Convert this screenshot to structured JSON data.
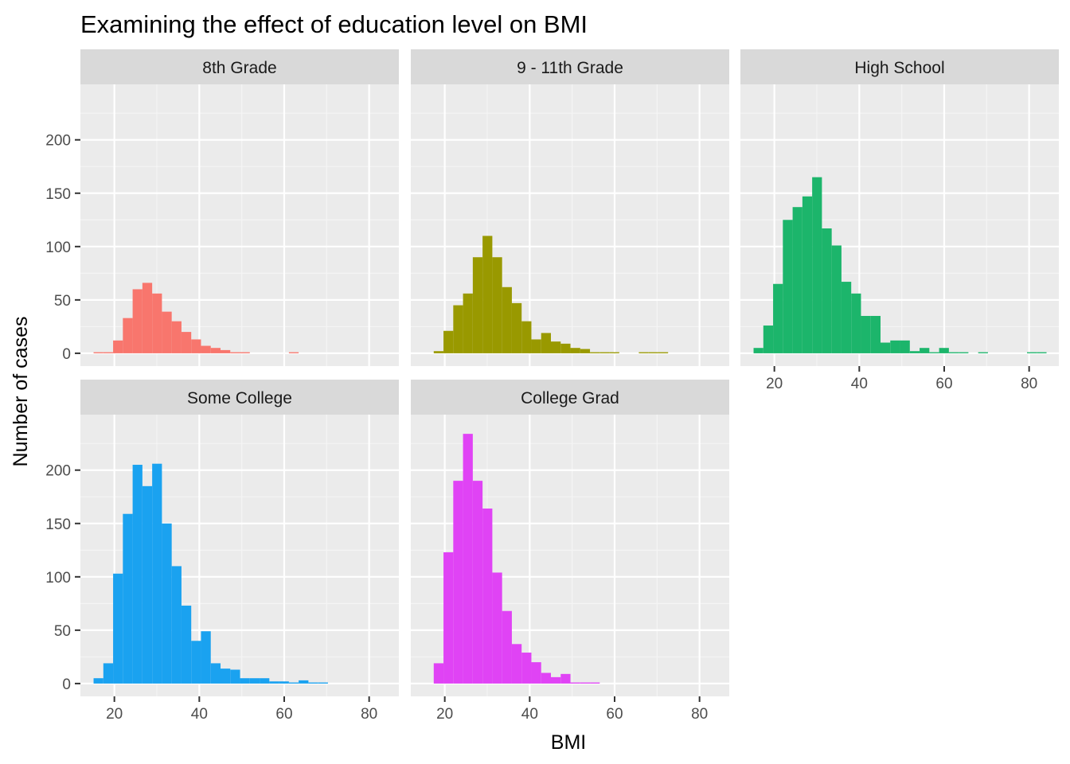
{
  "chart_data": {
    "type": "bar",
    "subtype": "faceted-histogram",
    "title": "Examining the effect of education level on BMI",
    "xlabel": "BMI",
    "ylabel": "Number of cases",
    "xlim": [
      12,
      87
    ],
    "ylim": [
      -12,
      252
    ],
    "x_ticks": [
      20,
      40,
      60,
      80
    ],
    "y_ticks": [
      0,
      50,
      100,
      150,
      200
    ],
    "grid": true,
    "bin_width": 2.3,
    "facets": [
      {
        "name": "8th Grade",
        "color": "#F8766D",
        "bins": [
          {
            "x0": 15.1,
            "count": 1
          },
          {
            "x0": 17.4,
            "count": 1
          },
          {
            "x0": 19.7,
            "count": 12
          },
          {
            "x0": 22.0,
            "count": 33
          },
          {
            "x0": 24.3,
            "count": 60
          },
          {
            "x0": 26.6,
            "count": 66
          },
          {
            "x0": 28.9,
            "count": 56
          },
          {
            "x0": 31.2,
            "count": 39
          },
          {
            "x0": 33.5,
            "count": 30
          },
          {
            "x0": 35.8,
            "count": 20
          },
          {
            "x0": 38.1,
            "count": 13
          },
          {
            "x0": 40.4,
            "count": 7
          },
          {
            "x0": 42.7,
            "count": 5
          },
          {
            "x0": 45.0,
            "count": 3
          },
          {
            "x0": 47.3,
            "count": 1
          },
          {
            "x0": 49.6,
            "count": 1
          },
          {
            "x0": 61.1,
            "count": 1
          }
        ]
      },
      {
        "name": "9 - 11th Grade",
        "color": "#999900",
        "bins": [
          {
            "x0": 17.4,
            "count": 2
          },
          {
            "x0": 19.7,
            "count": 21
          },
          {
            "x0": 22.0,
            "count": 45
          },
          {
            "x0": 24.3,
            "count": 56
          },
          {
            "x0": 26.6,
            "count": 90
          },
          {
            "x0": 28.9,
            "count": 110
          },
          {
            "x0": 31.2,
            "count": 90
          },
          {
            "x0": 33.5,
            "count": 62
          },
          {
            "x0": 35.8,
            "count": 47
          },
          {
            "x0": 38.1,
            "count": 30
          },
          {
            "x0": 40.4,
            "count": 13
          },
          {
            "x0": 42.7,
            "count": 19
          },
          {
            "x0": 45.0,
            "count": 11
          },
          {
            "x0": 47.3,
            "count": 9
          },
          {
            "x0": 49.6,
            "count": 5
          },
          {
            "x0": 51.9,
            "count": 4
          },
          {
            "x0": 54.2,
            "count": 1
          },
          {
            "x0": 56.5,
            "count": 1
          },
          {
            "x0": 58.8,
            "count": 1
          },
          {
            "x0": 65.7,
            "count": 1
          },
          {
            "x0": 68.0,
            "count": 1
          },
          {
            "x0": 70.3,
            "count": 1
          }
        ]
      },
      {
        "name": "High School",
        "color": "#1CB56B",
        "bins": [
          {
            "x0": 15.1,
            "count": 5
          },
          {
            "x0": 17.4,
            "count": 26
          },
          {
            "x0": 19.7,
            "count": 65
          },
          {
            "x0": 22.0,
            "count": 125
          },
          {
            "x0": 24.3,
            "count": 137
          },
          {
            "x0": 26.6,
            "count": 147
          },
          {
            "x0": 28.9,
            "count": 165
          },
          {
            "x0": 31.2,
            "count": 117
          },
          {
            "x0": 33.5,
            "count": 101
          },
          {
            "x0": 35.8,
            "count": 67
          },
          {
            "x0": 38.1,
            "count": 56
          },
          {
            "x0": 40.4,
            "count": 35
          },
          {
            "x0": 42.7,
            "count": 35
          },
          {
            "x0": 45.0,
            "count": 10
          },
          {
            "x0": 47.3,
            "count": 12
          },
          {
            "x0": 49.6,
            "count": 12
          },
          {
            "x0": 51.9,
            "count": 2
          },
          {
            "x0": 54.2,
            "count": 5
          },
          {
            "x0": 56.5,
            "count": 1
          },
          {
            "x0": 58.8,
            "count": 5
          },
          {
            "x0": 61.1,
            "count": 1
          },
          {
            "x0": 63.4,
            "count": 1
          },
          {
            "x0": 68.0,
            "count": 1
          },
          {
            "x0": 79.5,
            "count": 1
          },
          {
            "x0": 81.8,
            "count": 1
          }
        ]
      },
      {
        "name": "Some College",
        "color": "#1AA2F0",
        "bins": [
          {
            "x0": 15.1,
            "count": 5
          },
          {
            "x0": 17.4,
            "count": 19
          },
          {
            "x0": 19.7,
            "count": 103
          },
          {
            "x0": 22.0,
            "count": 159
          },
          {
            "x0": 24.3,
            "count": 205
          },
          {
            "x0": 26.6,
            "count": 185
          },
          {
            "x0": 28.9,
            "count": 206
          },
          {
            "x0": 31.2,
            "count": 150
          },
          {
            "x0": 33.5,
            "count": 110
          },
          {
            "x0": 35.8,
            "count": 73
          },
          {
            "x0": 38.1,
            "count": 40
          },
          {
            "x0": 40.4,
            "count": 49
          },
          {
            "x0": 42.7,
            "count": 19
          },
          {
            "x0": 45.0,
            "count": 14
          },
          {
            "x0": 47.3,
            "count": 13
          },
          {
            "x0": 49.6,
            "count": 5
          },
          {
            "x0": 51.9,
            "count": 5
          },
          {
            "x0": 54.2,
            "count": 5
          },
          {
            "x0": 56.5,
            "count": 2
          },
          {
            "x0": 58.8,
            "count": 2
          },
          {
            "x0": 61.1,
            "count": 1
          },
          {
            "x0": 63.4,
            "count": 3
          },
          {
            "x0": 65.7,
            "count": 1
          },
          {
            "x0": 68.0,
            "count": 1
          }
        ]
      },
      {
        "name": "College Grad",
        "color": "#E043F5",
        "bins": [
          {
            "x0": 17.4,
            "count": 19
          },
          {
            "x0": 19.7,
            "count": 123
          },
          {
            "x0": 22.0,
            "count": 190
          },
          {
            "x0": 24.3,
            "count": 234
          },
          {
            "x0": 26.6,
            "count": 190
          },
          {
            "x0": 28.9,
            "count": 164
          },
          {
            "x0": 31.2,
            "count": 104
          },
          {
            "x0": 33.5,
            "count": 68
          },
          {
            "x0": 35.8,
            "count": 37
          },
          {
            "x0": 38.1,
            "count": 29
          },
          {
            "x0": 40.4,
            "count": 20
          },
          {
            "x0": 42.7,
            "count": 10
          },
          {
            "x0": 45.0,
            "count": 6
          },
          {
            "x0": 47.3,
            "count": 9
          },
          {
            "x0": 49.6,
            "count": 1
          },
          {
            "x0": 51.9,
            "count": 1
          },
          {
            "x0": 54.2,
            "count": 1
          }
        ]
      }
    ]
  }
}
